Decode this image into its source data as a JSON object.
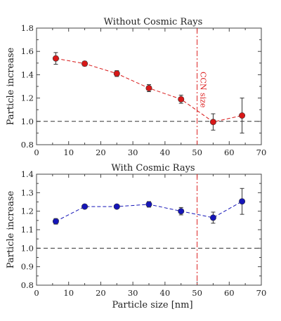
{
  "chart_data": [
    {
      "type": "line",
      "title": "Without Cosmic Rays",
      "xlabel": "",
      "ylabel": "Particle increase",
      "xlim": [
        0,
        70
      ],
      "ylim": [
        0.8,
        1.8
      ],
      "xticks": [
        "0",
        "10",
        "20",
        "30",
        "40",
        "50",
        "60",
        "70"
      ],
      "yticks": [
        "0.8",
        "1.0",
        "1.2",
        "1.4",
        "1.6",
        "1.8"
      ],
      "reference_line_y": 1.0,
      "vertical_marker": {
        "x": 50,
        "label": "CCN size",
        "color": "#dd2222"
      },
      "series": [
        {
          "color": "#d81818",
          "x": [
            6,
            15,
            25,
            35,
            45,
            55,
            64
          ],
          "y": [
            1.54,
            1.495,
            1.41,
            1.285,
            1.19,
            0.995,
            1.05
          ],
          "err": [
            0.05,
            0.02,
            0.025,
            0.03,
            0.035,
            0.07,
            0.15
          ]
        }
      ]
    },
    {
      "type": "line",
      "title": "With Cosmic Rays",
      "xlabel": "Particle size [nm]",
      "ylabel": "Particle increase",
      "xlim": [
        0,
        70
      ],
      "ylim": [
        0.8,
        1.4
      ],
      "xticks": [
        "0",
        "10",
        "20",
        "30",
        "40",
        "50",
        "60",
        "70"
      ],
      "yticks": [
        "0.8",
        "0.9",
        "1.0",
        "1.1",
        "1.2",
        "1.3",
        "1.4"
      ],
      "reference_line_y": 1.0,
      "vertical_marker": {
        "x": 50,
        "label": "",
        "color": "#dd2222"
      },
      "series": [
        {
          "color": "#1515b8",
          "x": [
            6,
            15,
            25,
            35,
            45,
            55,
            64
          ],
          "y": [
            1.145,
            1.225,
            1.225,
            1.237,
            1.2,
            1.165,
            1.253
          ],
          "err": [
            0.015,
            0.008,
            0.008,
            0.015,
            0.02,
            0.03,
            0.07
          ]
        }
      ]
    }
  ]
}
